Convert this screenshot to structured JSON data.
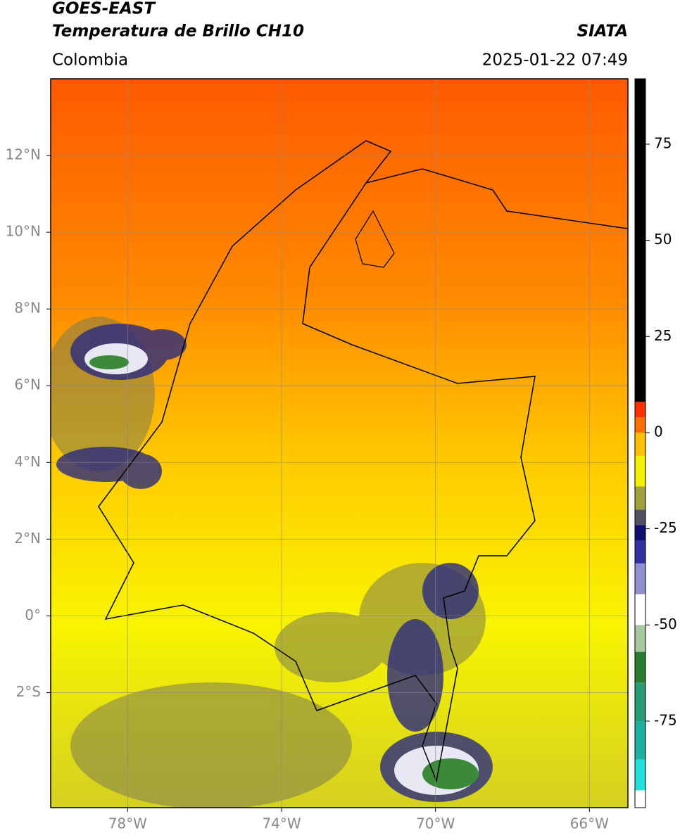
{
  "header": {
    "satellite": "GOES-EAST",
    "product": "Temperatura de Brillo CH10",
    "source": "SIATA",
    "region": "Colombia",
    "datetime": "2025-01-22 07:49"
  },
  "map": {
    "lonlim": [
      -80,
      -65
    ],
    "latlim": [
      -5,
      14
    ],
    "lonticks": [
      {
        "value": -78,
        "label": "78°W"
      },
      {
        "value": -74,
        "label": "74°W"
      },
      {
        "value": -70,
        "label": "70°W"
      },
      {
        "value": -66,
        "label": "66°W"
      }
    ],
    "latticks": [
      {
        "value": 12,
        "label": "12°N"
      },
      {
        "value": 10,
        "label": "10°N"
      },
      {
        "value": 8,
        "label": "8°N"
      },
      {
        "value": 6,
        "label": "6°N"
      },
      {
        "value": 4,
        "label": "4°N"
      },
      {
        "value": 2,
        "label": "2°N"
      },
      {
        "value": 0,
        "label": "0°"
      },
      {
        "value": -2,
        "label": "2°S"
      }
    ],
    "grid": true
  },
  "colorbar": {
    "lim": [
      -97.5,
      92
    ],
    "ticks": [
      75,
      50,
      25,
      0,
      -25,
      -50,
      -75
    ],
    "stops": [
      {
        "value": -97.5,
        "color": "#ffffff"
      },
      {
        "value": -93,
        "color": "#20e0d8"
      },
      {
        "value": -85,
        "color": "#20b0a0"
      },
      {
        "value": -75,
        "color": "#2a9a70"
      },
      {
        "value": -65,
        "color": "#2a7a30"
      },
      {
        "value": -57,
        "color": "#a8c8a0"
      },
      {
        "value": -50,
        "color": "#ffffff"
      },
      {
        "value": -42,
        "color": "#9090d0"
      },
      {
        "value": -34,
        "color": "#3030a0"
      },
      {
        "value": -28,
        "color": "#101070"
      },
      {
        "value": -24,
        "color": "#505060"
      },
      {
        "value": -20,
        "color": "#a0a040"
      },
      {
        "value": -14,
        "color": "#f0f000"
      },
      {
        "value": -6,
        "color": "#ffc000"
      },
      {
        "value": 0,
        "color": "#ff7000"
      },
      {
        "value": 4,
        "color": "#ff3000"
      },
      {
        "value": 8,
        "color": "#000000"
      }
    ]
  }
}
